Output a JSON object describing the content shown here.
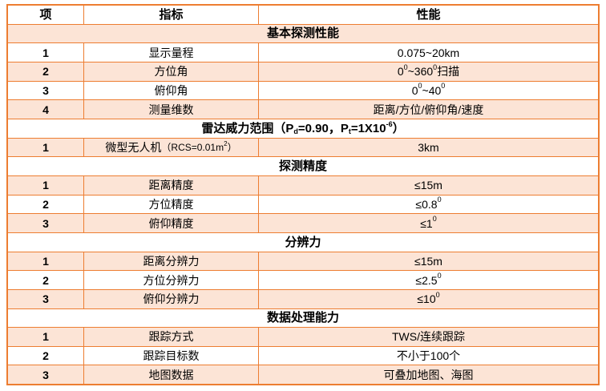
{
  "colors": {
    "border": "#ED7D31",
    "band": "#FCE4D6",
    "background": "#FFFFFF",
    "text": "#000000"
  },
  "table": {
    "columns": [
      "项",
      "指标",
      "性能"
    ],
    "rows": [
      {
        "type": "section",
        "shaded": true,
        "title": [
          {
            "t": "基本探测性能"
          }
        ]
      },
      {
        "type": "data",
        "shaded": false,
        "no": "1",
        "indicator": [
          {
            "t": "显示量程"
          }
        ],
        "value": [
          {
            "t": "0.075~20km"
          }
        ]
      },
      {
        "type": "data",
        "shaded": true,
        "no": "2",
        "indicator": [
          {
            "t": "方位角"
          }
        ],
        "value": [
          {
            "t": "0"
          },
          {
            "t": "0",
            "m": "sup"
          },
          {
            "t": "~360"
          },
          {
            "t": "0",
            "m": "sup"
          },
          {
            "t": "扫描"
          }
        ]
      },
      {
        "type": "data",
        "shaded": false,
        "no": "3",
        "indicator": [
          {
            "t": "俯仰角"
          }
        ],
        "value": [
          {
            "t": "0"
          },
          {
            "t": "0",
            "m": "sup"
          },
          {
            "t": "~40"
          },
          {
            "t": "0",
            "m": "sup"
          }
        ]
      },
      {
        "type": "data",
        "shaded": true,
        "no": "4",
        "indicator": [
          {
            "t": "测量维数"
          }
        ],
        "value": [
          {
            "t": "距离/方位/俯仰角/速度"
          }
        ]
      },
      {
        "type": "section",
        "shaded": false,
        "title": [
          {
            "t": "雷达威力范围（P"
          },
          {
            "t": "d",
            "m": "sub"
          },
          {
            "t": "=0.90，P"
          },
          {
            "t": "t",
            "m": "sub"
          },
          {
            "t": "=1X10"
          },
          {
            "t": "-6",
            "m": "sup"
          },
          {
            "t": "）"
          }
        ]
      },
      {
        "type": "data",
        "shaded": true,
        "no": "1",
        "indicator": [
          {
            "t": "微型无人机"
          },
          {
            "t": "（RCS=0.01m",
            "m": "small"
          },
          {
            "t": "2",
            "m": "smallsup"
          },
          {
            "t": "）",
            "m": "small"
          }
        ],
        "value": [
          {
            "t": "3km"
          }
        ]
      },
      {
        "type": "section",
        "shaded": false,
        "title": [
          {
            "t": "探测精度"
          }
        ]
      },
      {
        "type": "data",
        "shaded": true,
        "no": "1",
        "indicator": [
          {
            "t": "距离精度"
          }
        ],
        "value": [
          {
            "t": "≤15m"
          }
        ]
      },
      {
        "type": "data",
        "shaded": false,
        "no": "2",
        "indicator": [
          {
            "t": "方位精度"
          }
        ],
        "value": [
          {
            "t": "≤0.8"
          },
          {
            "t": "0",
            "m": "sup"
          }
        ]
      },
      {
        "type": "data",
        "shaded": true,
        "no": "3",
        "indicator": [
          {
            "t": "俯仰精度"
          }
        ],
        "value": [
          {
            "t": "≤1"
          },
          {
            "t": "0",
            "m": "sup"
          }
        ]
      },
      {
        "type": "section",
        "shaded": false,
        "title": [
          {
            "t": "分辨力"
          }
        ]
      },
      {
        "type": "data",
        "shaded": true,
        "no": "1",
        "indicator": [
          {
            "t": "距离分辨力"
          }
        ],
        "value": [
          {
            "t": "≤15m"
          }
        ]
      },
      {
        "type": "data",
        "shaded": false,
        "no": "2",
        "indicator": [
          {
            "t": "方位分辨力"
          }
        ],
        "value": [
          {
            "t": "≤2.5"
          },
          {
            "t": "0",
            "m": "sup"
          }
        ]
      },
      {
        "type": "data",
        "shaded": true,
        "no": "3",
        "indicator": [
          {
            "t": "俯仰分辨力"
          }
        ],
        "value": [
          {
            "t": "≤10"
          },
          {
            "t": "0",
            "m": "sup"
          }
        ]
      },
      {
        "type": "section",
        "shaded": false,
        "title": [
          {
            "t": "数据处理能力"
          }
        ]
      },
      {
        "type": "data",
        "shaded": true,
        "no": "1",
        "indicator": [
          {
            "t": "跟踪方式"
          }
        ],
        "value": [
          {
            "t": "TWS/连续跟踪"
          }
        ]
      },
      {
        "type": "data",
        "shaded": false,
        "no": "2",
        "indicator": [
          {
            "t": "跟踪目标数"
          }
        ],
        "value": [
          {
            "t": "不小于100个"
          }
        ]
      },
      {
        "type": "data",
        "shaded": true,
        "no": "3",
        "indicator": [
          {
            "t": "地图数据"
          }
        ],
        "value": [
          {
            "t": "可叠加地图、海图"
          }
        ]
      }
    ]
  }
}
